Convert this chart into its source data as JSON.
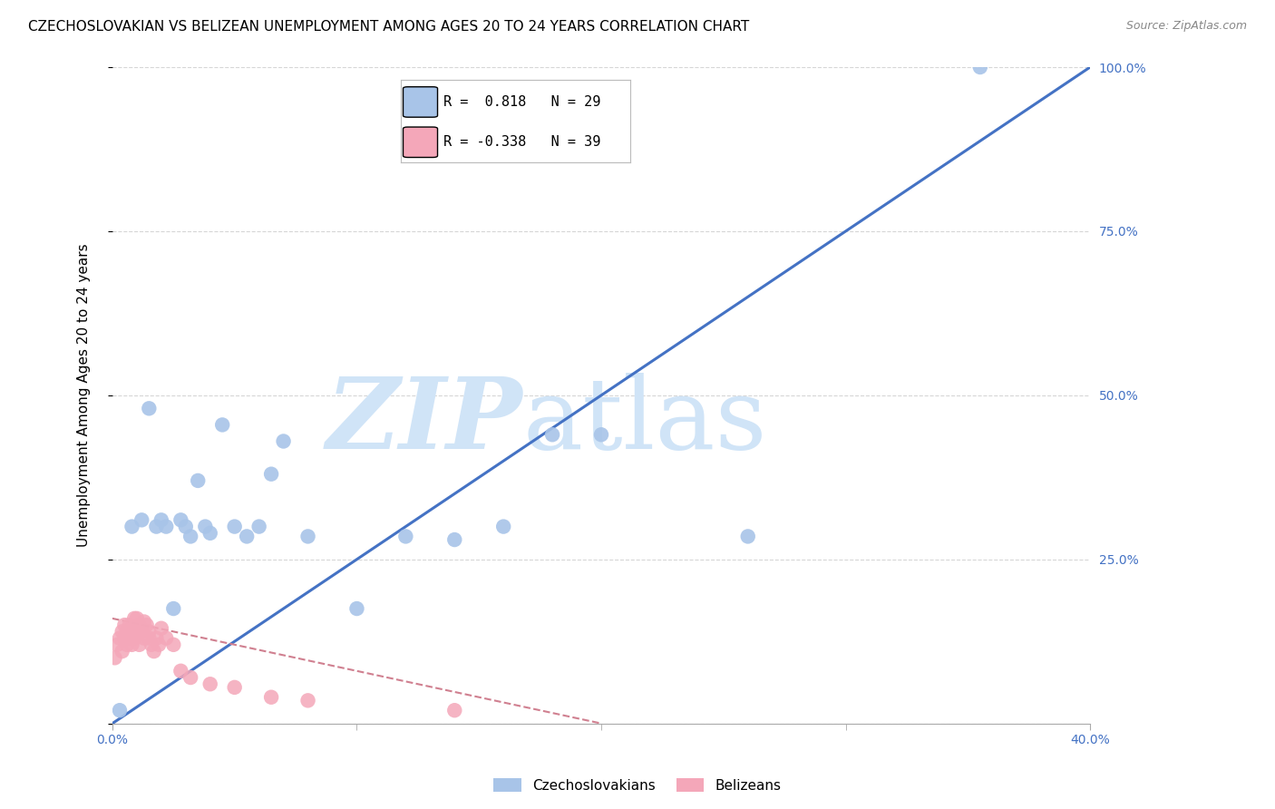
{
  "title": "CZECHOSLOVAKIAN VS BELIZEAN UNEMPLOYMENT AMONG AGES 20 TO 24 YEARS CORRELATION CHART",
  "source": "Source: ZipAtlas.com",
  "ylabel": "Unemployment Among Ages 20 to 24 years",
  "xlabel": "",
  "xlim": [
    0.0,
    0.4
  ],
  "ylim": [
    0.0,
    1.0
  ],
  "yticks_right": [
    0.0,
    0.25,
    0.5,
    0.75,
    1.0
  ],
  "ytick_labels_right": [
    "",
    "25.0%",
    "50.0%",
    "75.0%",
    "100.0%"
  ],
  "blue_R": 0.818,
  "blue_N": 29,
  "pink_R": -0.338,
  "pink_N": 39,
  "blue_color": "#a8c4e8",
  "blue_line_color": "#4472c4",
  "pink_color": "#f4a7b9",
  "pink_line_color": "#d08090",
  "blue_scatter_x": [
    0.003,
    0.008,
    0.012,
    0.015,
    0.018,
    0.02,
    0.022,
    0.025,
    0.028,
    0.03,
    0.032,
    0.035,
    0.038,
    0.04,
    0.045,
    0.05,
    0.055,
    0.06,
    0.065,
    0.07,
    0.08,
    0.1,
    0.12,
    0.14,
    0.16,
    0.18,
    0.2,
    0.26,
    0.355
  ],
  "blue_scatter_y": [
    0.02,
    0.3,
    0.31,
    0.48,
    0.3,
    0.31,
    0.3,
    0.175,
    0.31,
    0.3,
    0.285,
    0.37,
    0.3,
    0.29,
    0.455,
    0.3,
    0.285,
    0.3,
    0.38,
    0.43,
    0.285,
    0.175,
    0.285,
    0.28,
    0.3,
    0.44,
    0.44,
    0.285,
    1.0
  ],
  "pink_scatter_x": [
    0.001,
    0.002,
    0.003,
    0.004,
    0.004,
    0.005,
    0.005,
    0.006,
    0.006,
    0.007,
    0.007,
    0.008,
    0.008,
    0.009,
    0.009,
    0.01,
    0.01,
    0.011,
    0.011,
    0.012,
    0.013,
    0.013,
    0.014,
    0.015,
    0.015,
    0.016,
    0.017,
    0.018,
    0.019,
    0.02,
    0.022,
    0.025,
    0.028,
    0.032,
    0.04,
    0.05,
    0.065,
    0.08,
    0.14
  ],
  "pink_scatter_y": [
    0.1,
    0.12,
    0.13,
    0.11,
    0.14,
    0.13,
    0.15,
    0.12,
    0.14,
    0.15,
    0.13,
    0.12,
    0.145,
    0.16,
    0.13,
    0.14,
    0.16,
    0.15,
    0.12,
    0.14,
    0.13,
    0.155,
    0.15,
    0.13,
    0.14,
    0.12,
    0.11,
    0.13,
    0.12,
    0.145,
    0.13,
    0.12,
    0.08,
    0.07,
    0.06,
    0.055,
    0.04,
    0.035,
    0.02
  ],
  "blue_line_x": [
    0.0,
    0.4
  ],
  "blue_line_y": [
    0.0,
    1.0
  ],
  "pink_line_x": [
    0.0,
    0.2
  ],
  "pink_line_y": [
    0.16,
    0.0
  ],
  "watermark_zip": "ZIP",
  "watermark_atlas": "atlas",
  "watermark_color": "#d0e4f7",
  "background_color": "#ffffff",
  "grid_color": "#cccccc",
  "title_fontsize": 11,
  "axis_label_fontsize": 11,
  "tick_fontsize": 10,
  "source_fontsize": 9
}
